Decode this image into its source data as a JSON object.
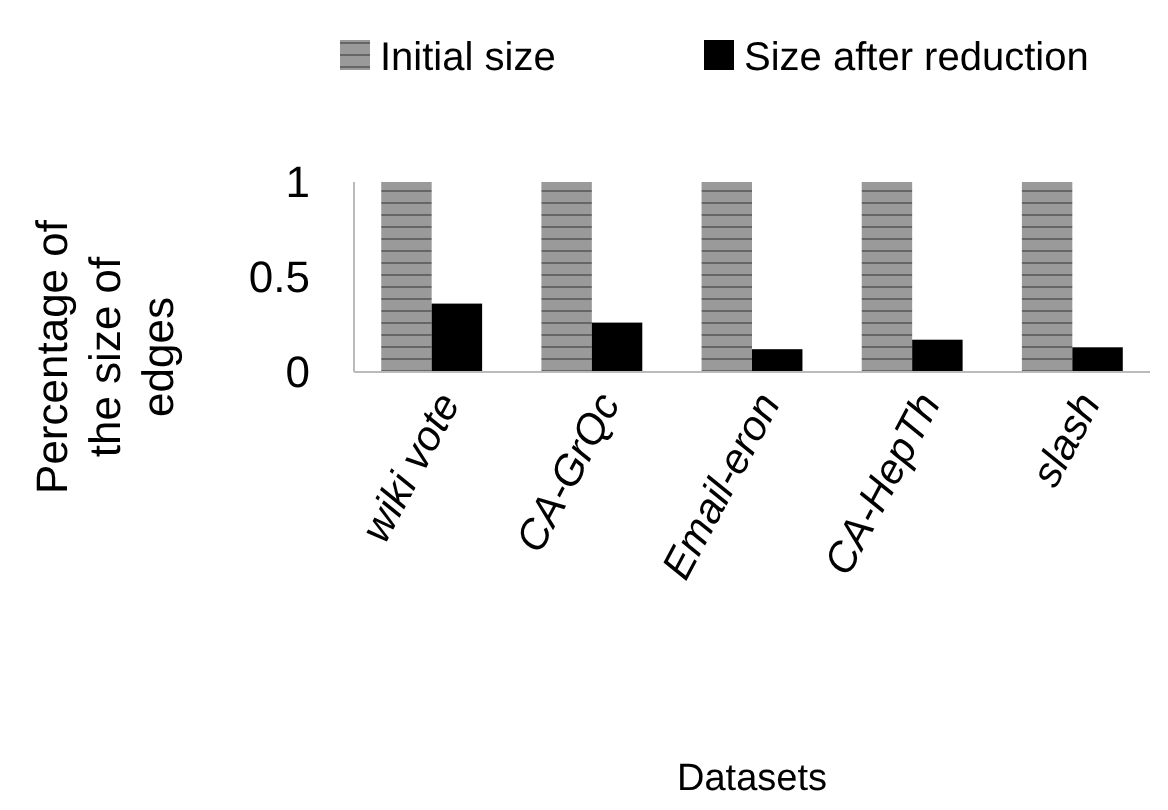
{
  "chart_data": {
    "type": "bar",
    "xlabel": "Datasets",
    "ylabel": "Percentage of the size of edges",
    "categories": [
      "wiki vote",
      "CA-GrQc",
      "Email-eron",
      "CA-HepTh",
      "slash"
    ],
    "series": [
      {
        "name": "Initial size",
        "color": "#9a9a9a",
        "values": [
          1,
          1,
          1,
          1,
          1
        ]
      },
      {
        "name": "Size after reduction",
        "color": "#000000",
        "values": [
          0.36,
          0.26,
          0.12,
          0.17,
          0.13
        ]
      }
    ],
    "ylim": [
      0,
      1
    ],
    "yticks": [
      0,
      0.5,
      1
    ],
    "legend": "top",
    "grid": false
  }
}
